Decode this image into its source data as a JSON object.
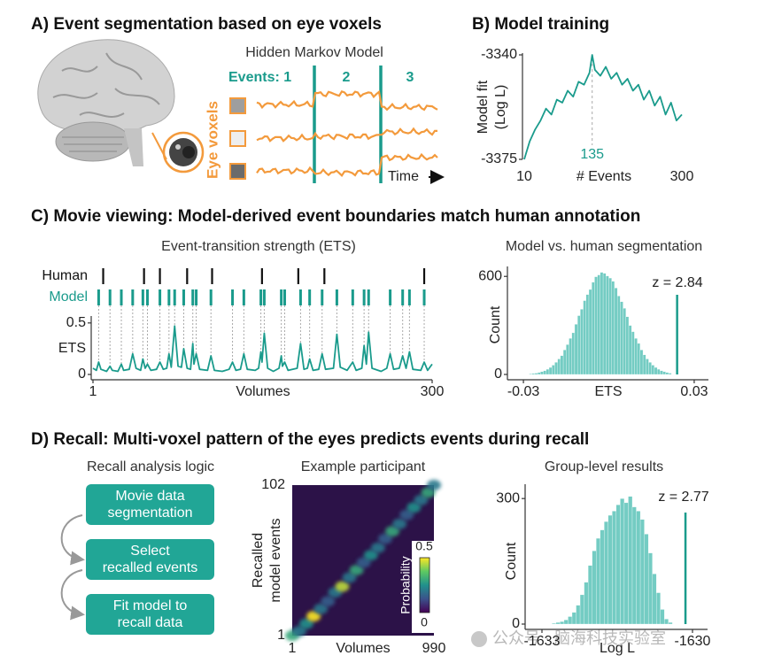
{
  "figure": {
    "panel_a": {
      "title": "A) Event segmentation based on eye voxels",
      "hmm_title": "Hidden Markov Model",
      "events_label": "Events: 1",
      "event_2": "2",
      "event_3": "3",
      "voxels_label": "Eye voxels",
      "time_label": "Time"
    },
    "panel_c_title": "C) Movie viewing: Model-derived event boundaries match human annotation",
    "panel_d_title": "D) Recall: Multi-voxel pattern of the eyes predicts events during recall",
    "recall_logic": {
      "title": "Recall analysis logic",
      "steps": [
        [
          "Movie data",
          "segmentation"
        ],
        [
          "Select",
          "recalled events"
        ],
        [
          "Fit model to",
          "recall data"
        ]
      ]
    },
    "watermark": "公众号 · 脑海科技实验室"
  },
  "chart_data": [
    {
      "type": "line",
      "title": "B) Model training",
      "xlabel": "# Events",
      "ylabel": [
        "Model fit",
        "(Log L)"
      ],
      "x": [
        10,
        20,
        30,
        40,
        50,
        60,
        70,
        80,
        90,
        100,
        110,
        120,
        130,
        135,
        140,
        150,
        160,
        170,
        180,
        190,
        200,
        210,
        220,
        230,
        240,
        250,
        260,
        270,
        280,
        290,
        300
      ],
      "values": [
        -3375,
        -3369,
        -3365,
        -3362,
        -3358,
        -3360,
        -3355,
        -3356,
        -3352,
        -3354,
        -3349,
        -3350,
        -3346,
        -3340,
        -3345,
        -3347,
        -3344,
        -3348,
        -3346,
        -3350,
        -3348,
        -3352,
        -3350,
        -3355,
        -3352,
        -3357,
        -3354,
        -3360,
        -3356,
        -3362,
        -3360
      ],
      "color": "#1a9b8c",
      "xlim": [
        10,
        300
      ],
      "ylim": [
        -3375,
        -3340
      ],
      "xticks": [
        10,
        300
      ],
      "yticks": [
        -3340,
        -3375
      ],
      "peak_x": 135
    },
    {
      "type": "line",
      "title": "Event-transition strength (ETS)",
      "xlabel": "Volumes",
      "ylabel": "ETS",
      "x": [
        1,
        4,
        6,
        8,
        13,
        16,
        18,
        23,
        26,
        28,
        33,
        36,
        39,
        43,
        45,
        47,
        49,
        52,
        57,
        60,
        63,
        66,
        68,
        70,
        73,
        76,
        79,
        81,
        84,
        87,
        89,
        90,
        92,
        95,
        102,
        105,
        108,
        115,
        121,
        124,
        127,
        131,
        134,
        137,
        144,
        147,
        149,
        150,
        152,
        155,
        160,
        165,
        167,
        168,
        170,
        173,
        181,
        184,
        187,
        190,
        192,
        195,
        200,
        203,
        206,
        213,
        216,
        219,
        225,
        230,
        233,
        238,
        240,
        242,
        244,
        247,
        255,
        260,
        263,
        266,
        271,
        274,
        277,
        280,
        283,
        290,
        293,
        296,
        300
      ],
      "values": [
        0.06,
        0.04,
        0.12,
        0.05,
        0.03,
        0.08,
        0.04,
        0.03,
        0.1,
        0.04,
        0.05,
        0.2,
        0.06,
        0.04,
        0.15,
        0.06,
        0.1,
        0.04,
        0.05,
        0.12,
        0.05,
        0.06,
        0.2,
        0.07,
        0.47,
        0.08,
        0.07,
        0.25,
        0.06,
        0.05,
        0.3,
        0.1,
        0.2,
        0.05,
        0.04,
        0.18,
        0.04,
        0.03,
        0.05,
        0.12,
        0.04,
        0.05,
        0.2,
        0.05,
        0.04,
        0.06,
        0.22,
        0.12,
        0.4,
        0.06,
        0.03,
        0.06,
        0.18,
        0.08,
        0.12,
        0.04,
        0.06,
        0.3,
        0.05,
        0.06,
        0.15,
        0.04,
        0.05,
        0.2,
        0.05,
        0.06,
        0.39,
        0.07,
        0.04,
        0.12,
        0.04,
        0.06,
        0.28,
        0.1,
        0.41,
        0.06,
        0.03,
        0.06,
        0.2,
        0.05,
        0.06,
        0.18,
        0.06,
        0.22,
        0.05,
        0.04,
        0.12,
        0.04,
        0.1
      ],
      "color": "#1a9b8c",
      "xlim": [
        1,
        300
      ],
      "ylim": [
        0,
        0.55
      ],
      "xticks": [
        1,
        300
      ],
      "yticks": [
        0,
        0.5
      ],
      "boundaries": [
        {
          "name": "Human",
          "color": "#111111",
          "values": [
            10,
            46,
            60,
            84,
            106,
            150,
            182,
            205,
            293
          ]
        },
        {
          "name": "Model",
          "color": "#1a9b8c",
          "values": [
            6,
            16,
            26,
            36,
            45,
            49,
            60,
            68,
            73,
            81,
            89,
            92,
            105,
            124,
            134,
            149,
            152,
            167,
            170,
            184,
            192,
            203,
            216,
            230,
            240,
            244,
            263,
            274,
            280,
            293
          ]
        }
      ]
    },
    {
      "type": "histogram",
      "title": "Model vs. human segmentation",
      "xlabel": "ETS",
      "ylabel": "Count",
      "bins": [
        -0.028,
        -0.027,
        -0.026,
        -0.025,
        -0.024,
        -0.023,
        -0.022,
        -0.021,
        -0.02,
        -0.019,
        -0.018,
        -0.017,
        -0.016,
        -0.015,
        -0.014,
        -0.013,
        -0.012,
        -0.011,
        -0.01,
        -0.009,
        -0.008,
        -0.007,
        -0.006,
        -0.005,
        -0.004,
        -0.003,
        -0.002,
        -0.001,
        0,
        0.001,
        0.002,
        0.003,
        0.004,
        0.005,
        0.006,
        0.007,
        0.008,
        0.009,
        0.01,
        0.011,
        0.012,
        0.013,
        0.014,
        0.015,
        0.016,
        0.017,
        0.018,
        0.019,
        0.02,
        0.021,
        0.022
      ],
      "values": [
        4,
        6,
        8,
        12,
        17,
        23,
        32,
        43,
        57,
        74,
        95,
        115,
        150,
        183,
        221,
        255,
        307,
        360,
        399,
        452,
        489,
        520,
        564,
        598,
        609,
        625,
        619,
        603,
        590,
        570,
        529,
        480,
        445,
        405,
        353,
        300,
        262,
        221,
        190,
        150,
        120,
        95,
        74,
        57,
        43,
        32,
        23,
        17,
        12,
        8
      ],
      "color": "#74ccc3",
      "observed": 0.024,
      "observed_color": "#1a9b8c",
      "annotation": "z = 2.84",
      "xlim": [
        -0.035,
        0.035
      ],
      "ylim": [
        0,
        650
      ],
      "xticks": [
        -0.03,
        0.03
      ],
      "yticks": [
        0,
        600
      ]
    },
    {
      "type": "heatmap",
      "title": "Example participant",
      "xlabel": "Volumes",
      "ylabel": [
        "Recalled",
        "model events"
      ],
      "x": [
        1,
        50,
        100,
        150,
        200,
        250,
        300,
        350,
        400,
        450,
        500,
        550,
        600,
        650,
        700,
        750,
        800,
        850,
        900,
        950,
        990
      ],
      "y": [
        1,
        4,
        9,
        14,
        19,
        24,
        30,
        34,
        40,
        45,
        50,
        55,
        60,
        66,
        71,
        76,
        82,
        87,
        92,
        97,
        102
      ],
      "values": [
        0.3,
        0.2,
        0.25,
        0.5,
        0.2,
        0.15,
        0.2,
        0.45,
        0.2,
        0.3,
        0.15,
        0.25,
        0.2,
        0.15,
        0.3,
        0.2,
        0.15,
        0.25,
        0.2,
        0.3,
        0.2
      ],
      "xlim": [
        1,
        990
      ],
      "ylim": [
        1,
        102
      ],
      "xticks": [
        1,
        990
      ],
      "yticks": [
        1,
        102
      ],
      "colorbar": {
        "label": "Probability",
        "clim": [
          0,
          0.5
        ],
        "ticks": [
          0,
          0.5
        ]
      }
    },
    {
      "type": "histogram",
      "title": "Group-level results",
      "xlabel": "Log L",
      "ylabel": "Count",
      "bins": [
        -1632.8,
        -1632.72,
        -1632.64,
        -1632.56,
        -1632.48,
        -1632.4,
        -1632.32,
        -1632.24,
        -1632.16,
        -1632.08,
        -1632,
        -1631.92,
        -1631.84,
        -1631.76,
        -1631.68,
        -1631.6,
        -1631.52,
        -1631.44,
        -1631.36,
        -1631.28,
        -1631.2,
        -1631.12,
        -1631.04,
        -1630.96,
        -1630.88,
        -1630.8,
        -1630.72,
        -1630.64,
        -1630.56,
        -1630.48,
        -1630.4
      ],
      "values": [
        2,
        4,
        6,
        10,
        18,
        28,
        45,
        70,
        100,
        140,
        175,
        205,
        225,
        245,
        260,
        270,
        285,
        300,
        290,
        305,
        280,
        270,
        250,
        215,
        170,
        120,
        75,
        35,
        12,
        4
      ],
      "color": "#74ccc3",
      "observed": -1630.14,
      "observed_color": "#1a9b8c",
      "annotation": "z = 2.77",
      "xlim": [
        -1633.3,
        -1629.7
      ],
      "ylim": [
        0,
        330
      ],
      "xticks": [
        -1633,
        -1630
      ],
      "yticks": [
        0,
        300
      ]
    }
  ]
}
